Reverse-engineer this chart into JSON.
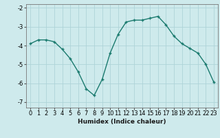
{
  "x": [
    0,
    1,
    2,
    3,
    4,
    5,
    6,
    7,
    8,
    9,
    10,
    11,
    12,
    13,
    14,
    15,
    16,
    17,
    18,
    19,
    20,
    21,
    22,
    23
  ],
  "y": [
    -3.9,
    -3.7,
    -3.7,
    -3.8,
    -4.2,
    -4.7,
    -5.4,
    -6.3,
    -6.65,
    -5.8,
    -4.4,
    -3.4,
    -2.75,
    -2.65,
    -2.65,
    -2.55,
    -2.45,
    -2.9,
    -3.5,
    -3.9,
    -4.15,
    -4.4,
    -5.0,
    -5.95
  ],
  "line_color": "#1a7a6e",
  "marker": "+",
  "markersize": 3.5,
  "linewidth": 1.0,
  "bg_color": "#ceeaec",
  "grid_color": "#aed4d8",
  "xlabel": "Humidex (Indice chaleur)",
  "xlabel_fontsize": 6.5,
  "tick_fontsize": 6.0,
  "ylim": [
    -7.3,
    -1.8
  ],
  "xlim": [
    -0.5,
    23.5
  ],
  "yticks": [
    -7,
    -6,
    -5,
    -4,
    -3,
    -2
  ],
  "xticks": [
    0,
    1,
    2,
    3,
    4,
    5,
    6,
    7,
    8,
    9,
    10,
    11,
    12,
    13,
    14,
    15,
    16,
    17,
    18,
    19,
    20,
    21,
    22,
    23
  ]
}
